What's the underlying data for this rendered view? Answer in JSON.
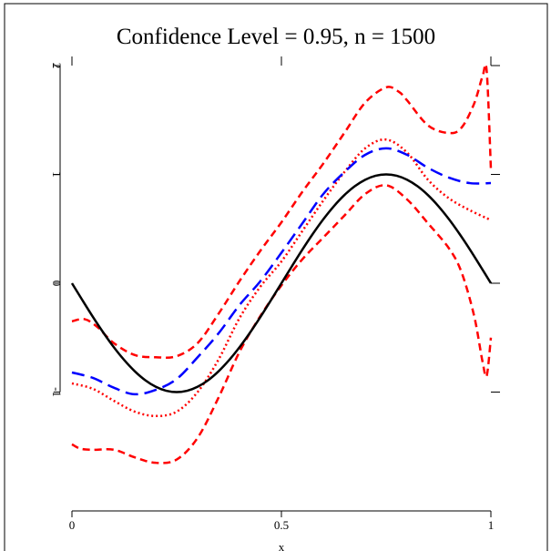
{
  "chart_data": {
    "type": "line",
    "title": "Confidence Level = 0.95, n = 1500",
    "xlabel": "x",
    "ylabel": "",
    "xlim": [
      0,
      1
    ],
    "ylim": [
      -2,
      2
    ],
    "x_ticks": [
      0,
      0.5,
      1
    ],
    "x_tick_labels": [
      "0",
      "0.5",
      "1"
    ],
    "y_ticks": [
      -1,
      0,
      1,
      2
    ],
    "y_tick_labels": [
      "-1",
      "0",
      "1",
      "2"
    ],
    "grid": false,
    "legend": "none",
    "series": [
      {
        "color": "#ff0000",
        "style": "dashed",
        "x": [
          0,
          0.03,
          0.06,
          0.1,
          0.15,
          0.2,
          0.25,
          0.3,
          0.35,
          0.4,
          0.45,
          0.5,
          0.55,
          0.6,
          0.65,
          0.7,
          0.75,
          0.78,
          0.8,
          0.85,
          0.9,
          0.93,
          0.96,
          0.98,
          0.99,
          1.0
        ],
        "values": [
          -0.35,
          -0.33,
          -0.4,
          -0.55,
          -0.66,
          -0.68,
          -0.67,
          -0.55,
          -0.28,
          0.02,
          0.3,
          0.56,
          0.84,
          1.1,
          1.38,
          1.66,
          1.8,
          1.76,
          1.68,
          1.45,
          1.38,
          1.43,
          1.65,
          1.9,
          1.95,
          1.05
        ]
      },
      {
        "color": "#ff0000",
        "style": "dotted",
        "x": [
          0,
          0.05,
          0.1,
          0.15,
          0.2,
          0.25,
          0.3,
          0.35,
          0.4,
          0.45,
          0.5,
          0.55,
          0.6,
          0.65,
          0.7,
          0.75,
          0.8,
          0.85,
          0.9,
          0.95,
          1.0
        ],
        "values": [
          -0.92,
          -0.97,
          -1.08,
          -1.18,
          -1.22,
          -1.18,
          -1.0,
          -0.7,
          -0.32,
          -0.03,
          0.2,
          0.48,
          0.76,
          1.02,
          1.24,
          1.32,
          1.2,
          0.95,
          0.78,
          0.67,
          0.58
        ]
      },
      {
        "color": "#ff0000",
        "style": "dashed",
        "x": [
          0,
          0.02,
          0.05,
          0.1,
          0.15,
          0.2,
          0.25,
          0.3,
          0.35,
          0.4,
          0.45,
          0.5,
          0.55,
          0.6,
          0.65,
          0.7,
          0.75,
          0.8,
          0.85,
          0.9,
          0.93,
          0.96,
          0.98,
          0.99,
          1.0
        ],
        "values": [
          -1.48,
          -1.52,
          -1.53,
          -1.53,
          -1.6,
          -1.65,
          -1.62,
          -1.42,
          -1.05,
          -0.63,
          -0.3,
          -0.02,
          0.22,
          0.42,
          0.62,
          0.82,
          0.9,
          0.77,
          0.55,
          0.32,
          0.1,
          -0.3,
          -0.72,
          -0.85,
          -0.5
        ]
      },
      {
        "color": "#0000ff",
        "style": "longdash",
        "x": [
          0,
          0.05,
          0.1,
          0.15,
          0.2,
          0.25,
          0.3,
          0.35,
          0.4,
          0.45,
          0.5,
          0.55,
          0.6,
          0.65,
          0.7,
          0.75,
          0.8,
          0.85,
          0.9,
          0.95,
          1.0
        ],
        "values": [
          -0.82,
          -0.87,
          -0.96,
          -1.02,
          -0.98,
          -0.88,
          -0.68,
          -0.46,
          -0.2,
          0.02,
          0.28,
          0.55,
          0.82,
          1.02,
          1.18,
          1.24,
          1.18,
          1.06,
          0.97,
          0.92,
          0.92
        ]
      },
      {
        "color": "#000000",
        "style": "solid",
        "x": [
          0,
          0.025,
          0.05,
          0.075,
          0.1,
          0.125,
          0.15,
          0.175,
          0.2,
          0.225,
          0.25,
          0.275,
          0.3,
          0.325,
          0.35,
          0.375,
          0.4,
          0.425,
          0.45,
          0.475,
          0.5,
          0.525,
          0.55,
          0.575,
          0.6,
          0.625,
          0.65,
          0.675,
          0.7,
          0.725,
          0.75,
          0.775,
          0.8,
          0.825,
          0.85,
          0.875,
          0.9,
          0.925,
          0.95,
          0.975,
          1.0
        ],
        "values": [
          0,
          -0.156,
          -0.309,
          -0.454,
          -0.588,
          -0.707,
          -0.809,
          -0.891,
          -0.951,
          -0.988,
          -1.0,
          -0.988,
          -0.951,
          -0.891,
          -0.809,
          -0.707,
          -0.588,
          -0.454,
          -0.309,
          -0.156,
          0,
          0.156,
          0.309,
          0.454,
          0.588,
          0.707,
          0.809,
          0.891,
          0.951,
          0.988,
          1.0,
          0.988,
          0.951,
          0.891,
          0.809,
          0.707,
          0.588,
          0.454,
          0.309,
          0.156,
          0
        ]
      }
    ]
  }
}
